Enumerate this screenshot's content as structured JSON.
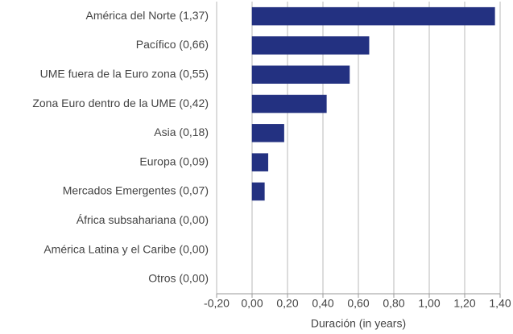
{
  "chart_data": {
    "type": "bar",
    "orientation": "horizontal",
    "x_label": "Duración (in years)",
    "categories": [
      "América del Norte (1,37)",
      "Pacífico (0,66)",
      "UME fuera de la Euro zona (0,55)",
      "Zona Euro dentro de la UME (0,42)",
      "Asia (0,18)",
      "Europa (0,09)",
      "Mercados Emergentes (0,07)",
      "África subsahariana (0,00)",
      "América Latina y el Caribe (0,00)",
      "Otros (0,00)"
    ],
    "values": [
      1.37,
      0.66,
      0.55,
      0.42,
      0.18,
      0.09,
      0.07,
      0,
      0,
      0
    ],
    "color": "#233181",
    "xlim": [
      -0.2,
      1.4
    ],
    "xticks": [
      {
        "value": -0.2,
        "label": "-0,20"
      },
      {
        "value": 0,
        "label": "0,00"
      },
      {
        "value": 0.2,
        "label": "0,20"
      },
      {
        "value": 0.4,
        "label": "0,40"
      },
      {
        "value": 0.6,
        "label": "0,60"
      },
      {
        "value": 0.8,
        "label": "0,80"
      },
      {
        "value": 1,
        "label": "1,00"
      },
      {
        "value": 1.2,
        "label": "1,20"
      },
      {
        "value": 1.4,
        "label": "1,40"
      }
    ],
    "grid": true
  }
}
